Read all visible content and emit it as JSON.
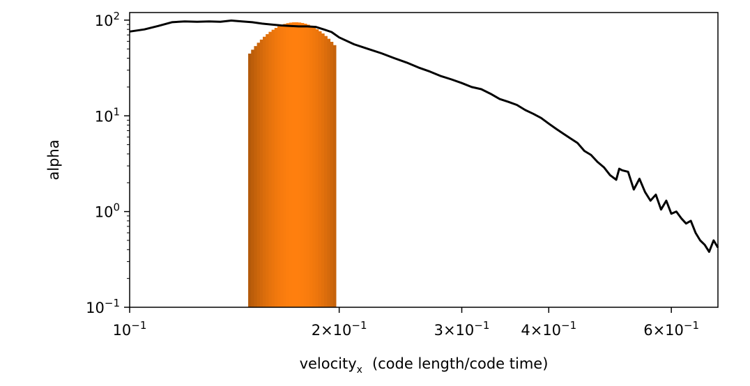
{
  "chart_data": {
    "type": "line",
    "xscale": "log",
    "yscale": "log",
    "xlim": [
      0.1,
      0.7
    ],
    "ylim": [
      0.1,
      120
    ],
    "xlabel": "velocity",
    "xlabel_sub": "x",
    "xlabel_units": "(code length/code time)",
    "ylabel": "alpha",
    "grid": false,
    "x_ticks": [
      {
        "value": 0.1,
        "mantissa": "",
        "base": "10",
        "exp": "−1"
      },
      {
        "value": 0.2,
        "mantissa": "2×",
        "base": "10",
        "exp": "−1"
      },
      {
        "value": 0.3,
        "mantissa": "3×",
        "base": "10",
        "exp": "−1"
      },
      {
        "value": 0.4,
        "mantissa": "4×",
        "base": "10",
        "exp": "−1"
      },
      {
        "value": 0.6,
        "mantissa": "6×",
        "base": "10",
        "exp": "−1"
      }
    ],
    "y_ticks": [
      {
        "value": 0.1,
        "base": "10",
        "exp": "−1"
      },
      {
        "value": 1,
        "base": "10",
        "exp": "0"
      },
      {
        "value": 10,
        "base": "10",
        "exp": "1"
      },
      {
        "value": 100,
        "base": "10",
        "exp": "2"
      }
    ],
    "series": [
      {
        "style": "line",
        "color": "#000000",
        "x": [
          0.1,
          0.105,
          0.11,
          0.115,
          0.12,
          0.125,
          0.13,
          0.135,
          0.14,
          0.145,
          0.15,
          0.155,
          0.16,
          0.165,
          0.17,
          0.175,
          0.18,
          0.185,
          0.19,
          0.195,
          0.2,
          0.21,
          0.22,
          0.23,
          0.24,
          0.25,
          0.26,
          0.27,
          0.28,
          0.29,
          0.3,
          0.31,
          0.32,
          0.33,
          0.34,
          0.35,
          0.36,
          0.37,
          0.38,
          0.39,
          0.4,
          0.41,
          0.42,
          0.43,
          0.44,
          0.45,
          0.46,
          0.47,
          0.48,
          0.49,
          0.5,
          0.505,
          0.51,
          0.52,
          0.53,
          0.54,
          0.55,
          0.56,
          0.57,
          0.58,
          0.59,
          0.6,
          0.61,
          0.62,
          0.63,
          0.64,
          0.65,
          0.66,
          0.67,
          0.68,
          0.69,
          0.7
        ],
        "y": [
          76,
          80,
          87,
          95,
          97,
          96,
          97,
          96,
          99,
          97,
          95,
          92,
          90,
          88,
          87,
          86,
          86,
          85,
          80,
          75,
          66,
          56,
          50,
          45,
          40,
          36,
          32,
          29,
          26,
          24,
          22,
          20,
          19,
          17,
          15,
          14,
          13,
          11.5,
          10.5,
          9.5,
          8.3,
          7.3,
          6.5,
          5.8,
          5.2,
          4.3,
          3.9,
          3.3,
          2.9,
          2.4,
          2.15,
          2.8,
          2.7,
          2.6,
          1.7,
          2.2,
          1.6,
          1.3,
          1.5,
          1.05,
          1.3,
          0.95,
          1.0,
          0.85,
          0.75,
          0.8,
          0.6,
          0.5,
          0.45,
          0.38,
          0.5,
          0.42
        ]
      },
      {
        "style": "histogram",
        "colormap": [
          "#000000",
          "#ff7f0e"
        ],
        "center": 0.173,
        "peak": 95,
        "sigma_log": 0.0535,
        "bin_width_log": 0.0042,
        "x_min": 0.148,
        "x_max": 0.196
      }
    ]
  }
}
